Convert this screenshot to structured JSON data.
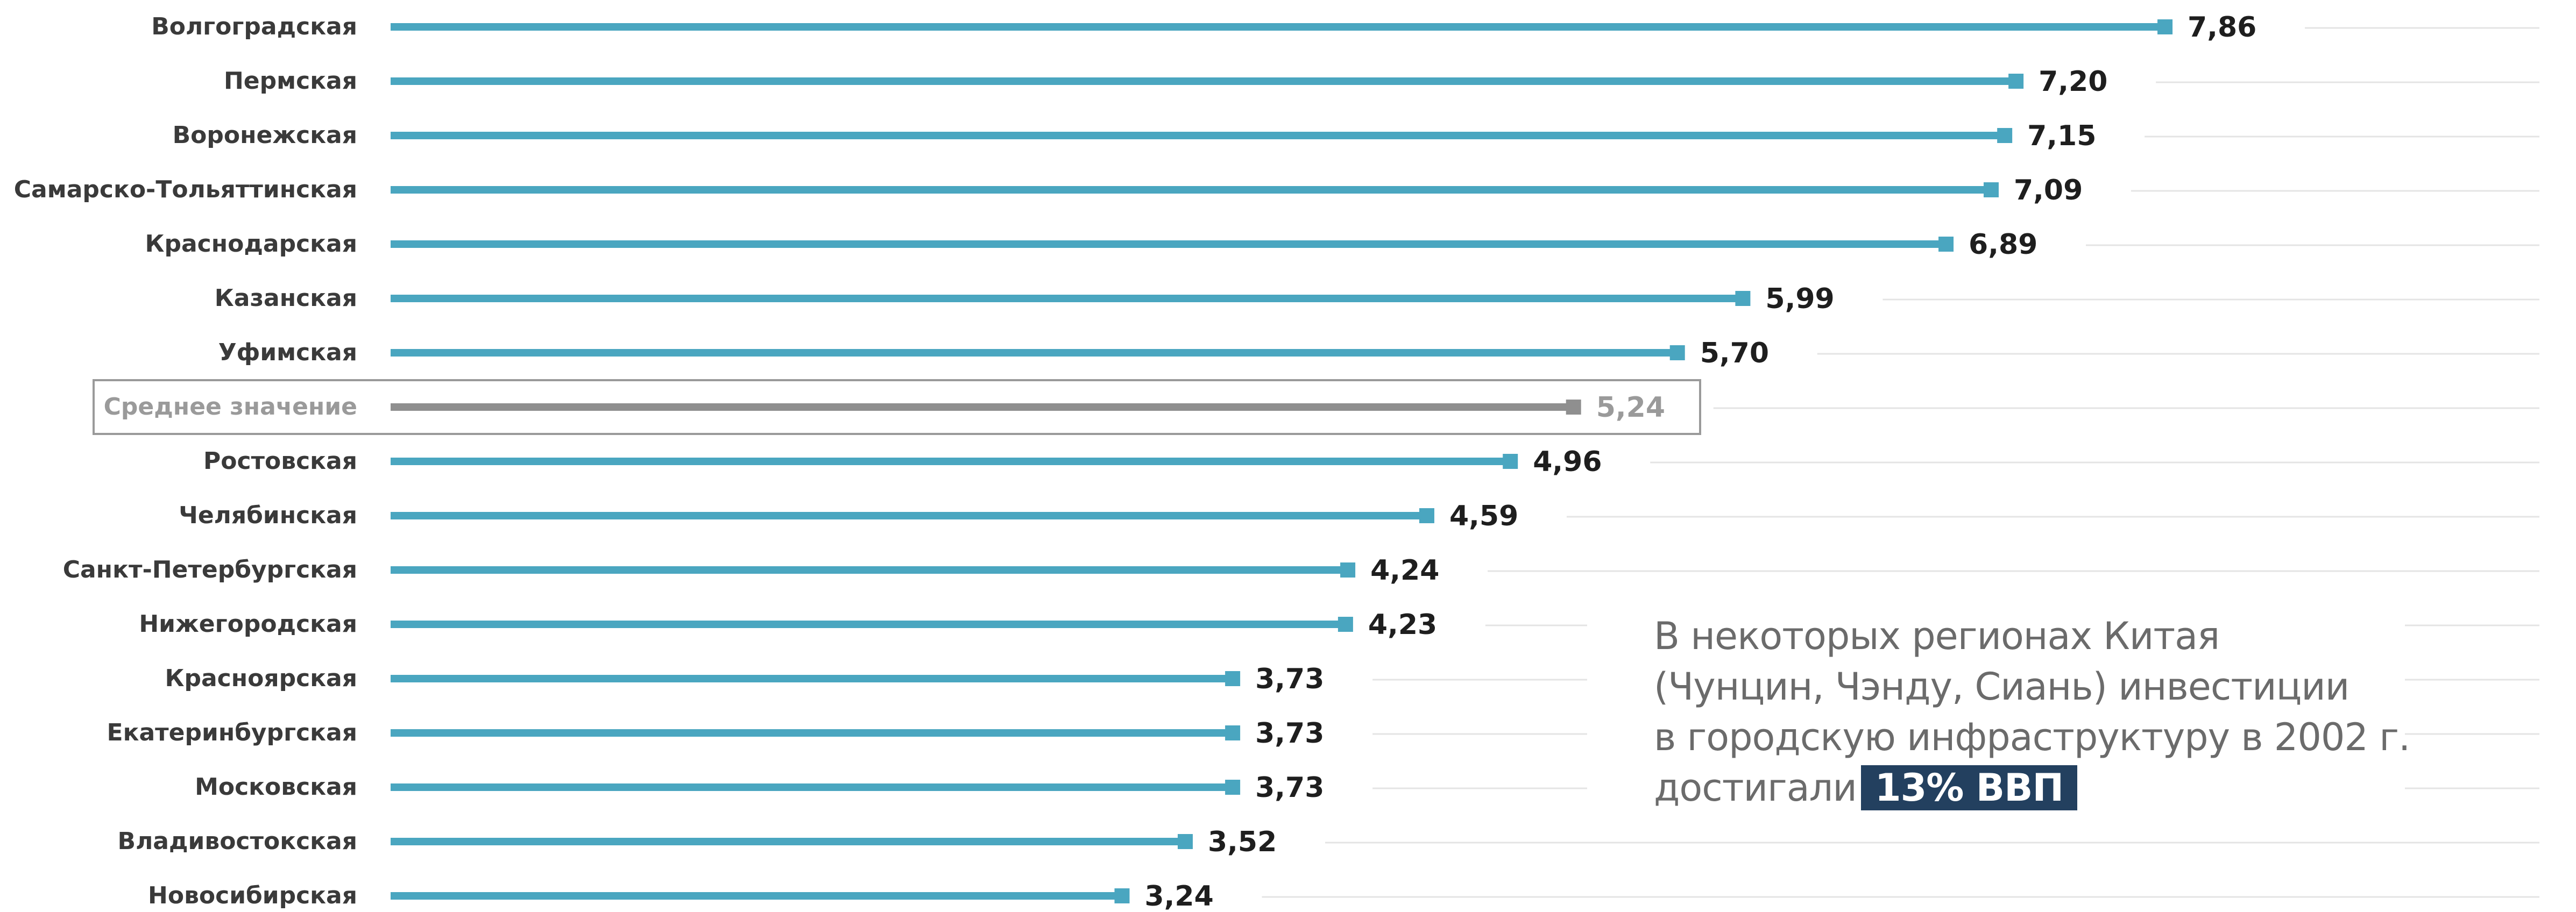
{
  "chart_data": {
    "type": "bar",
    "orientation": "horizontal",
    "categories": [
      "Волгоградская",
      "Пермская",
      "Воронежская",
      "Самарско-Тольяттинская",
      "Краснодарская",
      "Казанская",
      "Уфимская",
      "Среднее значение",
      "Ростовская",
      "Челябинская",
      "Санкт-Петербургская",
      "Нижегородская",
      "Красноярская",
      "Екатеринбургская",
      "Московская",
      "Владивостокская",
      "Новосибирская"
    ],
    "values": [
      7.86,
      7.2,
      7.15,
      7.09,
      6.89,
      5.99,
      5.7,
      5.24,
      4.96,
      4.59,
      4.24,
      4.23,
      3.73,
      3.73,
      3.73,
      3.52,
      3.24
    ],
    "value_labels": [
      "7,86",
      "7,20",
      "7,15",
      "7,09",
      "6,89",
      "5,99",
      "5,70",
      "5,24",
      "4,96",
      "4,59",
      "4,24",
      "4,23",
      "3,73",
      "3,73",
      "3,73",
      "3,52",
      "3,24"
    ],
    "highlight_category": "Среднее значение",
    "xlim": [
      0,
      10
    ],
    "grid": true,
    "colors": {
      "bar": "#4aa6c0",
      "average_bar": "#8f8f8f",
      "grid": "#e4e4e4",
      "average_box": "#9a9a9a"
    }
  },
  "annotation": {
    "lines": [
      "В некоторых регионах Китая",
      "(Чунцин, Чэнду, Сиань) инвестиции",
      "в городскую инфраструктуру  в 2002 г.",
      "достигали"
    ],
    "highlight": "13% ВВП",
    "highlight_color": "#23405f"
  }
}
